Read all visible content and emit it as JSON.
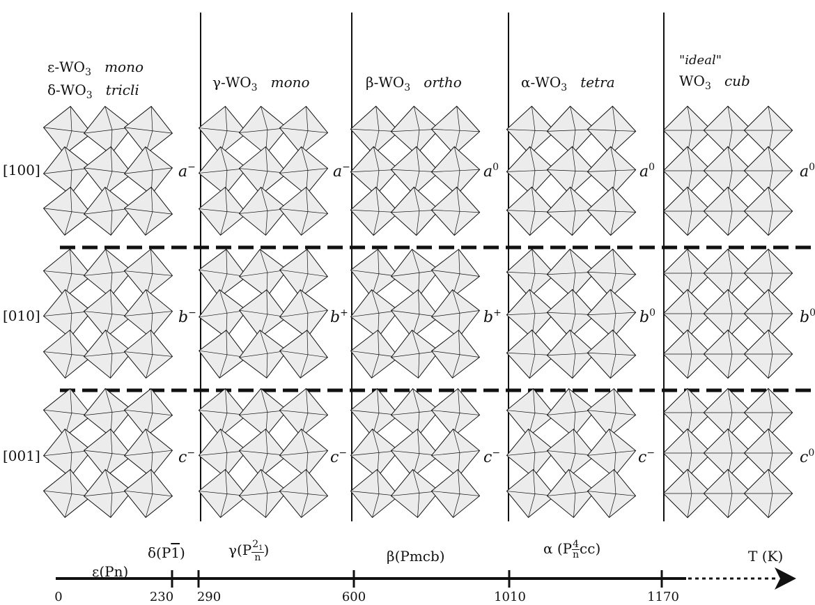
{
  "phases": [
    {
      "line1": {
        "prefix": "ε-WO",
        "sub": "3",
        "suffix": "mono"
      },
      "line2": {
        "prefix": "δ-WO",
        "sub": "3",
        "suffix": "tricli"
      },
      "tilts": {
        "a": {
          "base": "a",
          "sup": "−"
        },
        "b": {
          "base": "b",
          "sup": "−"
        },
        "c": {
          "base": "c",
          "sup": "−"
        }
      }
    },
    {
      "line1": {
        "prefix": "γ-WO",
        "sub": "3",
        "suffix": "mono"
      },
      "tilts": {
        "a": {
          "base": "a",
          "sup": "−"
        },
        "b": {
          "base": "b",
          "sup": "+"
        },
        "c": {
          "base": "c",
          "sup": "−"
        }
      }
    },
    {
      "line1": {
        "prefix": "β-WO",
        "sub": "3",
        "suffix": "ortho"
      },
      "tilts": {
        "a": {
          "base": "a",
          "sup": "0"
        },
        "b": {
          "base": "b",
          "sup": "+"
        },
        "c": {
          "base": "c",
          "sup": "−"
        }
      }
    },
    {
      "line1": {
        "prefix": "α-WO",
        "sub": "3",
        "suffix": "tetra"
      },
      "tilts": {
        "a": {
          "base": "a",
          "sup": "0"
        },
        "b": {
          "base": "b",
          "sup": "0"
        },
        "c": {
          "base": "c",
          "sup": "−"
        }
      }
    },
    {
      "quote": "\"ideal\"",
      "line1": {
        "prefix": "WO",
        "sub": "3",
        "suffix": "cub"
      },
      "tilts": {
        "a": {
          "base": "a",
          "sup": "0"
        },
        "b": {
          "base": "b",
          "sup": "0"
        },
        "c": {
          "base": "c",
          "sup": "0"
        }
      }
    }
  ],
  "directions": [
    "[100]",
    "[010]",
    "[001]"
  ],
  "axis": {
    "label": "T (K)",
    "ticks": [
      "0",
      "230",
      "290",
      "600",
      "1010",
      "1170"
    ],
    "regions": {
      "eps": "ε(Pn)",
      "delta_pre": "δ(P",
      "delta_sym": "1",
      "delta_post": ")",
      "gamma_pre": "γ(P",
      "gamma_num": "2",
      "gamma_num_sub": "1",
      "gamma_den": "n",
      "gamma_post": ")",
      "beta": "β(Pmcb)",
      "alpha_pre": "α (P",
      "alpha_num": "4",
      "alpha_den": "n",
      "alpha_post": "cc)"
    }
  },
  "colors": {
    "octahedron_fill": "#ececec",
    "line": "#111111"
  }
}
